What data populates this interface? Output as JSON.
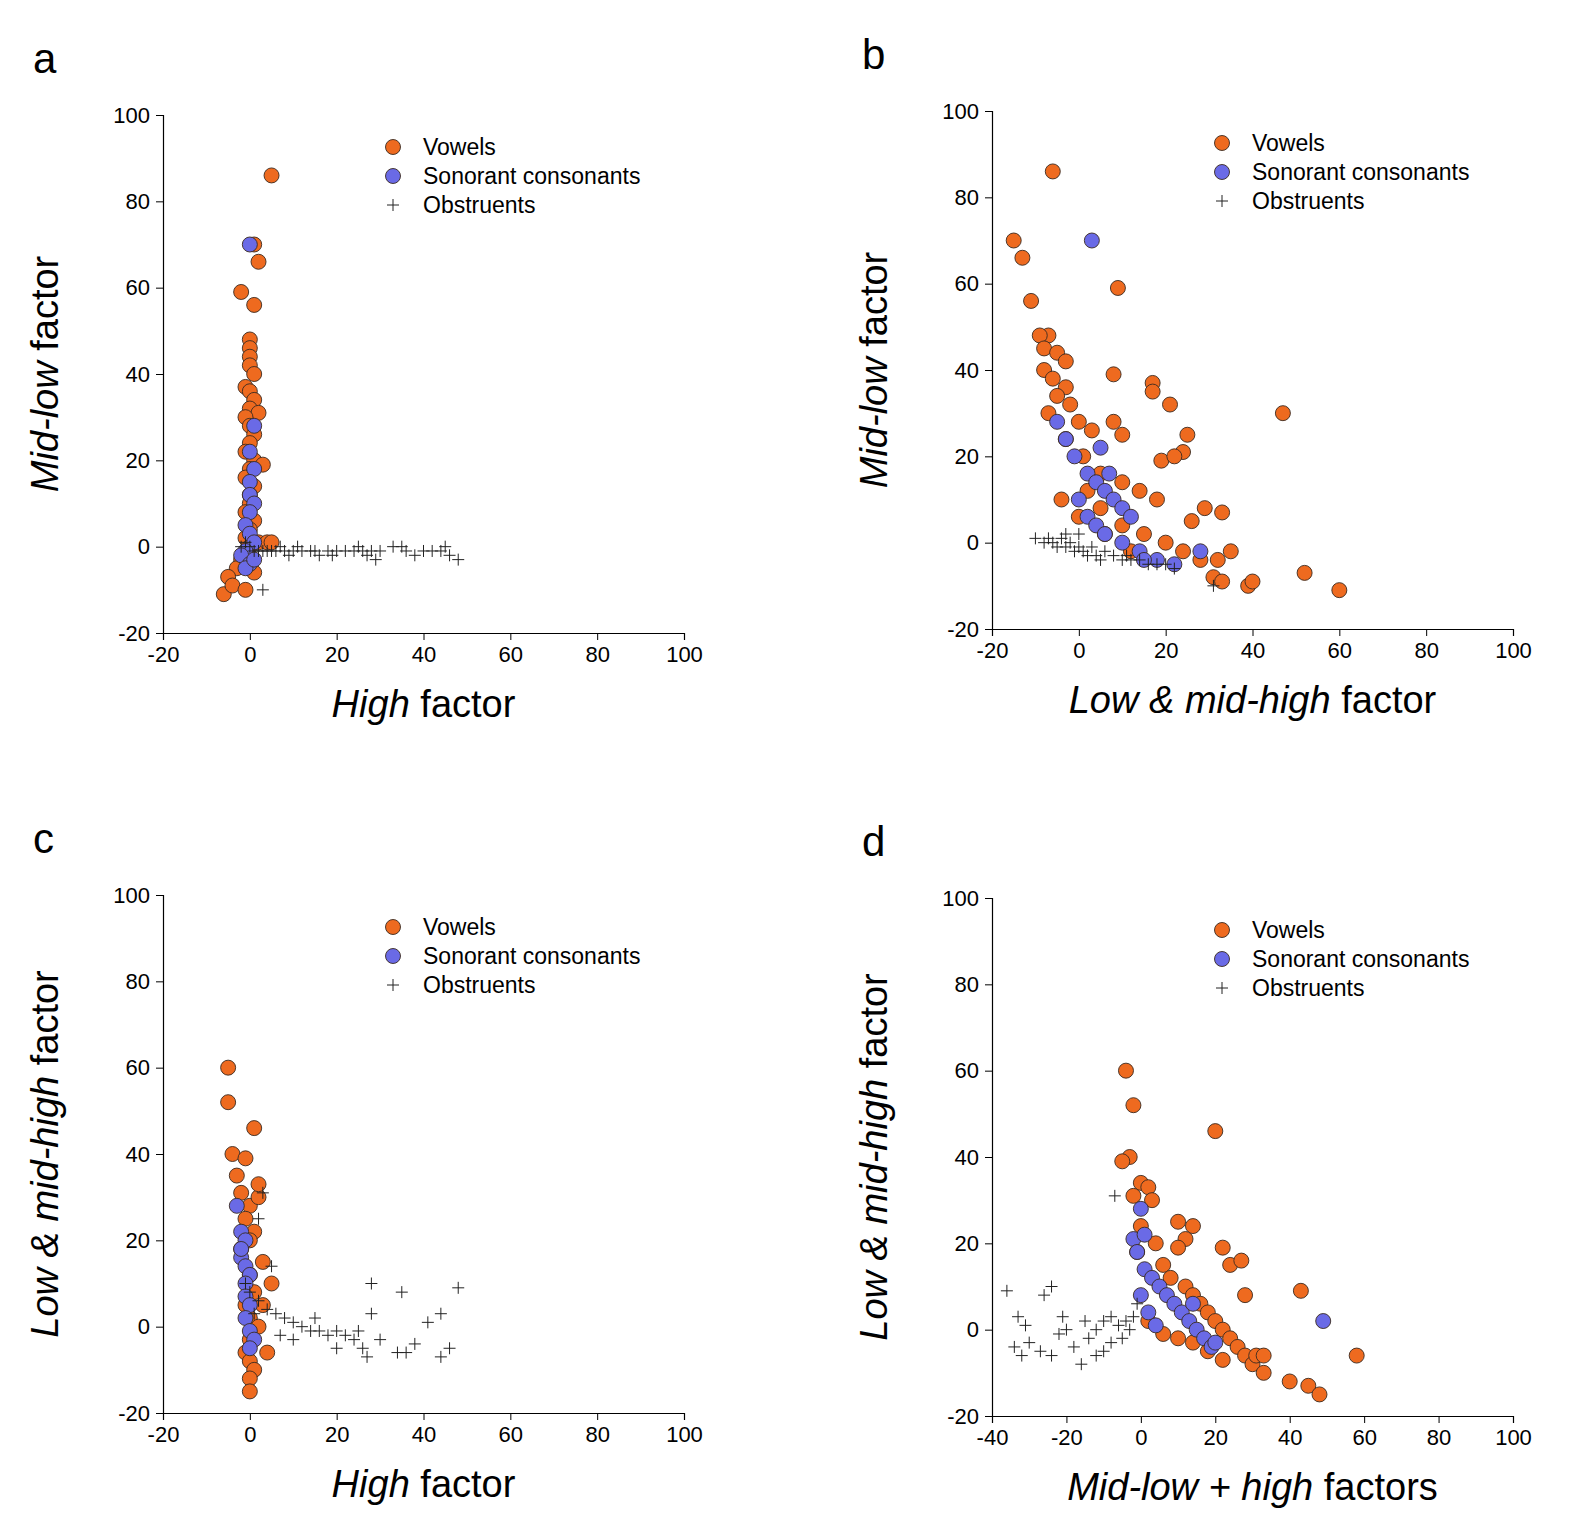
{
  "chart_data": [
    {
      "type": "scatter",
      "title": "a",
      "xlabel": "High factor",
      "ylabel": "Mid-low factor",
      "xlim": [
        -20,
        100
      ],
      "ylim": [
        -20,
        100
      ],
      "xticks": [
        -20,
        0,
        20,
        40,
        60,
        80,
        100
      ],
      "yticks": [
        -20,
        0,
        20,
        40,
        60,
        80,
        100
      ],
      "legend": "top-right",
      "series": [
        {
          "name": "Vowels",
          "color": "#ee6a1f",
          "marker": "circle",
          "x": [
            5,
            1,
            2,
            -2,
            1,
            0,
            0,
            0,
            0,
            1,
            -1,
            0,
            1,
            0,
            2,
            -1,
            0,
            1,
            0,
            -1,
            1,
            3,
            0,
            -1,
            1,
            0,
            0,
            -1,
            1,
            0,
            -1,
            0,
            2,
            4,
            -2,
            -3,
            -5,
            -6,
            -4,
            -1,
            1,
            5
          ],
          "values": [
            86,
            70,
            66,
            59,
            56,
            48,
            46,
            44,
            42,
            40,
            37,
            36,
            34,
            32,
            31,
            30,
            28,
            26,
            24,
            22,
            20,
            19,
            18,
            16,
            14,
            12,
            10,
            8,
            6,
            4,
            2,
            0,
            1,
            1,
            -3,
            -5,
            -7,
            -11,
            -9,
            -10,
            -6,
            1
          ]
        },
        {
          "name": "Sonorant consonants",
          "color": "#6a6ae6",
          "marker": "circle",
          "x": [
            0,
            1,
            0,
            1,
            0,
            0,
            1,
            0,
            -1,
            0,
            1,
            -1,
            -2,
            0,
            -1,
            1
          ],
          "values": [
            70,
            28,
            22,
            18,
            15,
            12,
            10,
            8,
            5,
            3,
            1,
            -1,
            -2,
            -4,
            -5,
            -3
          ]
        },
        {
          "name": "Obstruents",
          "color": "#222222",
          "marker": "plus",
          "x": [
            0,
            1,
            2,
            3,
            4,
            5,
            6,
            8,
            10,
            12,
            14,
            16,
            18,
            20,
            22,
            24,
            26,
            28,
            29,
            30,
            33,
            35,
            36,
            38,
            40,
            42,
            44,
            45,
            46,
            48,
            3,
            -2,
            -1,
            7,
            9,
            11,
            15,
            19,
            25,
            27
          ],
          "values": [
            0,
            -1,
            -1,
            -1,
            -1,
            -1,
            -1,
            -1,
            -1,
            -1,
            -1,
            -2,
            -1,
            -1,
            -1,
            -1,
            -1,
            -1,
            -3,
            -1,
            0,
            0,
            -1,
            -2,
            -1,
            -1,
            -1,
            0,
            -2,
            -3,
            -10,
            0,
            1,
            0,
            -2,
            0,
            -1,
            -2,
            0,
            -2
          ]
        }
      ]
    },
    {
      "type": "scatter",
      "title": "b",
      "xlabel": "Low & mid-high factor",
      "ylabel": "Mid-low factor",
      "xlim": [
        -20,
        100
      ],
      "ylim": [
        -20,
        100
      ],
      "xticks": [
        -20,
        0,
        20,
        40,
        60,
        80,
        100
      ],
      "yticks": [
        -20,
        0,
        20,
        40,
        60,
        80,
        100
      ],
      "legend": "top-right",
      "series": [
        {
          "name": "Vowels",
          "color": "#ee6a1f",
          "marker": "circle",
          "x": [
            -6,
            -15,
            -13,
            -11,
            9,
            -7,
            -9,
            -8,
            -5,
            -3,
            -8,
            -6,
            -3,
            8,
            -5,
            -2,
            -7,
            17,
            17,
            21,
            0,
            3,
            8,
            10,
            47,
            25,
            24,
            19,
            22,
            -3,
            1,
            5,
            10,
            14,
            18,
            5,
            10,
            15,
            20,
            24,
            28,
            32,
            33,
            29,
            35,
            31,
            33,
            39,
            40,
            52,
            60,
            12,
            6,
            0,
            -4,
            2,
            26
          ],
          "values": [
            86,
            70,
            66,
            56,
            59,
            48,
            48,
            45,
            44,
            42,
            40,
            38,
            36,
            39,
            34,
            32,
            30,
            37,
            35,
            32,
            28,
            26,
            28,
            25,
            30,
            25,
            21,
            19,
            20,
            24,
            20,
            16,
            14,
            12,
            10,
            8,
            4,
            2,
            0,
            -2,
            -4,
            -4,
            7,
            8,
            -2,
            -8,
            -9,
            -10,
            -9,
            -7,
            -11,
            -2,
            2,
            6,
            10,
            12,
            5
          ]
        },
        {
          "name": "Sonorant consonants",
          "color": "#6a6ae6",
          "marker": "circle",
          "x": [
            3,
            -5,
            -3,
            -1,
            2,
            4,
            6,
            8,
            10,
            12,
            0,
            2,
            4,
            6,
            10,
            14,
            18,
            22,
            28,
            7,
            5,
            15
          ],
          "values": [
            70,
            28,
            24,
            20,
            16,
            14,
            12,
            10,
            8,
            6,
            10,
            6,
            4,
            2,
            0,
            -2,
            -4,
            -5,
            -2,
            16,
            22,
            -4
          ]
        },
        {
          "name": "Obstruents",
          "color": "#222222",
          "marker": "plus",
          "x": [
            -10,
            -8,
            -6,
            -5,
            -4,
            -3,
            -2,
            -1,
            0,
            1,
            2,
            3,
            4,
            6,
            8,
            10,
            12,
            14,
            16,
            18,
            20,
            22,
            -7,
            0,
            -3,
            5,
            31,
            11
          ],
          "values": [
            1,
            0,
            0,
            -1,
            1,
            -1,
            0,
            -2,
            -1,
            -2,
            -3,
            -1,
            -3,
            -2,
            -3,
            -4,
            -4,
            -4,
            -5,
            -5,
            -5,
            -6,
            1,
            2,
            2,
            -4,
            -10,
            -3
          ]
        }
      ]
    },
    {
      "type": "scatter",
      "title": "c",
      "xlabel": "High factor",
      "ylabel": "Low & mid-high factor",
      "xlim": [
        -20,
        100
      ],
      "ylim": [
        -20,
        100
      ],
      "xticks": [
        -20,
        0,
        20,
        40,
        60,
        80,
        100
      ],
      "yticks": [
        -20,
        0,
        20,
        40,
        60,
        80,
        100
      ],
      "legend": "top-right",
      "series": [
        {
          "name": "Vowels",
          "color": "#ee6a1f",
          "marker": "circle",
          "x": [
            -5,
            -5,
            -4,
            1,
            -3,
            -2,
            0,
            2,
            -1,
            1,
            0,
            -2,
            3,
            0,
            5,
            1,
            -1,
            0,
            2,
            0,
            -1,
            0,
            1,
            0,
            0,
            4,
            -1,
            2,
            3
          ],
          "values": [
            60,
            52,
            40,
            46,
            35,
            31,
            28,
            30,
            25,
            22,
            20,
            18,
            15,
            12,
            10,
            8,
            5,
            2,
            0,
            -3,
            -6,
            -8,
            -10,
            -12,
            -15,
            -6,
            39,
            33,
            5
          ]
        },
        {
          "name": "Sonorant consonants",
          "color": "#6a6ae6",
          "marker": "circle",
          "x": [
            -3,
            -2,
            -1,
            -2,
            -1,
            0,
            -1,
            -1,
            0,
            -1,
            0,
            1,
            0,
            -2
          ],
          "values": [
            28,
            22,
            20,
            16,
            14,
            12,
            10,
            7,
            5,
            2,
            -1,
            -3,
            -5,
            18
          ]
        },
        {
          "name": "Obstruents",
          "color": "#222222",
          "marker": "plus",
          "x": [
            3,
            2,
            5,
            -1,
            0,
            2,
            4,
            6,
            8,
            10,
            12,
            14,
            16,
            18,
            20,
            22,
            24,
            26,
            27,
            28,
            28,
            30,
            34,
            36,
            35,
            38,
            41,
            44,
            44,
            46,
            48,
            15,
            10,
            7,
            1,
            20,
            25
          ],
          "values": [
            31,
            25,
            14,
            10,
            8,
            6,
            4,
            3,
            2,
            1,
            0,
            -1,
            -1,
            -2,
            -1,
            -2,
            -3,
            -5,
            -7,
            10,
            3,
            -3,
            -6,
            -6,
            8,
            -4,
            1,
            3,
            -7,
            -5,
            9,
            2,
            -3,
            -2,
            3,
            -5,
            -1
          ]
        }
      ]
    },
    {
      "type": "scatter",
      "title": "d",
      "xlabel": "Mid-low + high factors",
      "ylabel": "Low & mid-high factor",
      "xlim": [
        -40,
        100
      ],
      "ylim": [
        -20,
        100
      ],
      "xticks": [
        -40,
        -20,
        0,
        20,
        40,
        60,
        80,
        100
      ],
      "yticks": [
        -20,
        0,
        20,
        40,
        60,
        80,
        100
      ],
      "legend": "top-right",
      "series": [
        {
          "name": "Vowels",
          "color": "#ee6a1f",
          "marker": "circle",
          "x": [
            -4,
            -2,
            -3,
            20,
            -5,
            0,
            2,
            3,
            -2,
            10,
            14,
            12,
            10,
            22,
            24,
            27,
            0,
            4,
            -1,
            6,
            8,
            12,
            14,
            16,
            18,
            20,
            22,
            24,
            26,
            28,
            30,
            33,
            31,
            28,
            33,
            43,
            40,
            45,
            48,
            58,
            2,
            6,
            10,
            14,
            18,
            22
          ],
          "values": [
            60,
            52,
            40,
            46,
            39,
            34,
            33,
            30,
            31,
            25,
            24,
            21,
            19,
            19,
            15,
            16,
            24,
            20,
            18,
            15,
            12,
            10,
            8,
            6,
            4,
            2,
            0,
            -2,
            -4,
            -6,
            -8,
            -10,
            -6,
            8,
            -6,
            9,
            -12,
            -13,
            -15,
            -6,
            2,
            -1,
            -2,
            -3,
            -5,
            -7
          ]
        },
        {
          "name": "Sonorant consonants",
          "color": "#6a6ae6",
          "marker": "circle",
          "x": [
            49,
            0,
            -2,
            1,
            -1,
            1,
            3,
            5,
            7,
            9,
            11,
            13,
            15,
            17,
            19,
            20,
            14,
            0,
            2,
            4
          ],
          "values": [
            2,
            28,
            21,
            22,
            18,
            14,
            12,
            10,
            8,
            6,
            4,
            2,
            0,
            -2,
            -4,
            -3,
            6,
            8,
            4,
            1
          ]
        },
        {
          "name": "Obstruents",
          "color": "#222222",
          "marker": "plus",
          "x": [
            -36,
            -33,
            -31,
            -32,
            -34,
            -30,
            -26,
            -24,
            -27,
            -24,
            -20,
            -21,
            -18,
            -16,
            -14,
            -12,
            -10,
            -8,
            -6,
            -4,
            -2,
            -1,
            -3,
            -5,
            -8,
            -10,
            -7,
            -12,
            -15,
            -22
          ],
          "values": [
            9,
            3,
            1,
            -6,
            -4,
            -3,
            8,
            10,
            -5,
            -6,
            0,
            3,
            -4,
            -8,
            -2,
            0,
            2,
            3,
            1,
            2,
            3,
            6,
            0,
            -2,
            -3,
            -5,
            31,
            -6,
            2,
            -1
          ]
        }
      ]
    }
  ]
}
